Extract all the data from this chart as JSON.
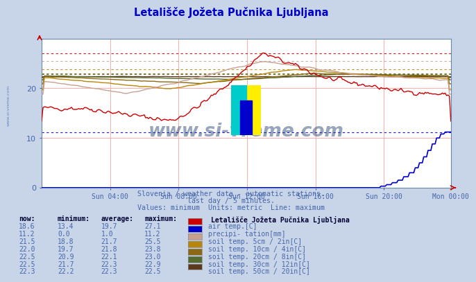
{
  "title": "Letališče Jožeta Pučnika Ljubljana",
  "subtitle1": "Slovenia / weather data - automatic stations.",
  "subtitle2": "last day / 5 minutes.",
  "subtitle3": "Values: minimum  Units: metric  Line: maximum",
  "legend_title": "Letališče Jožeta Pučnika Ljubljana",
  "bg_color": "#c8d4e8",
  "plot_bg_color": "#ffffff",
  "title_color": "#0000cc",
  "text_color": "#4466aa",
  "watermark": "www.si-vreme.com",
  "watermark_color": "#1a3a6a",
  "n_points": 288,
  "xlim": [
    0,
    287
  ],
  "ylim": [
    0,
    30
  ],
  "yticks": [
    0,
    10,
    20
  ],
  "xtick_labels": [
    "Sun 04:00",
    "Sun 08:00",
    "Sun 12:00",
    "Sun 16:00",
    "Sun 20:00",
    "Mon 00:00"
  ],
  "xtick_positions": [
    48,
    96,
    144,
    192,
    240,
    287
  ],
  "series_colors": {
    "air_temp": "#cc0000",
    "precipitation": "#0000cc",
    "soil5": "#c8a090",
    "soil10": "#b8860b",
    "soil20": "#8b6914",
    "soil30": "#556b2f",
    "soil50": "#5c3a1e"
  },
  "hlines": [
    {
      "y": 27.1,
      "color": "#cc0000"
    },
    {
      "y": 11.2,
      "color": "#0000cc"
    },
    {
      "y": 25.5,
      "color": "#c8a090"
    },
    {
      "y": 23.8,
      "color": "#b8860b"
    },
    {
      "y": 23.0,
      "color": "#8b6914"
    },
    {
      "y": 22.9,
      "color": "#556b2f"
    },
    {
      "y": 22.5,
      "color": "#5c3a1e"
    }
  ],
  "table_rows": [
    {
      "now": "18.6",
      "min": "13.4",
      "avg": "19.7",
      "max": "27.1",
      "color": "#cc0000",
      "label": "air temp.[C]"
    },
    {
      "now": "11.2",
      "min": "0.0",
      "avg": "1.0",
      "max": "11.2",
      "color": "#0000cc",
      "label": "precipi- tation[mm]"
    },
    {
      "now": "21.5",
      "min": "18.8",
      "avg": "21.7",
      "max": "25.5",
      "color": "#c8a090",
      "label": "soil temp. 5cm / 2in[C]"
    },
    {
      "now": "22.0",
      "min": "19.7",
      "avg": "21.8",
      "max": "23.8",
      "color": "#b8860b",
      "label": "soil temp. 10cm / 4in[C]"
    },
    {
      "now": "22.5",
      "min": "20.9",
      "avg": "22.1",
      "max": "23.0",
      "color": "#8b6914",
      "label": "soil temp. 20cm / 8in[C]"
    },
    {
      "now": "22.5",
      "min": "21.7",
      "avg": "22.3",
      "max": "22.9",
      "color": "#556b2f",
      "label": "soil temp. 30cm / 12in[C]"
    },
    {
      "now": "22.3",
      "min": "22.2",
      "avg": "22.3",
      "max": "22.5",
      "color": "#5c3a1e",
      "label": "soil temp. 50cm / 20in[C]"
    }
  ]
}
